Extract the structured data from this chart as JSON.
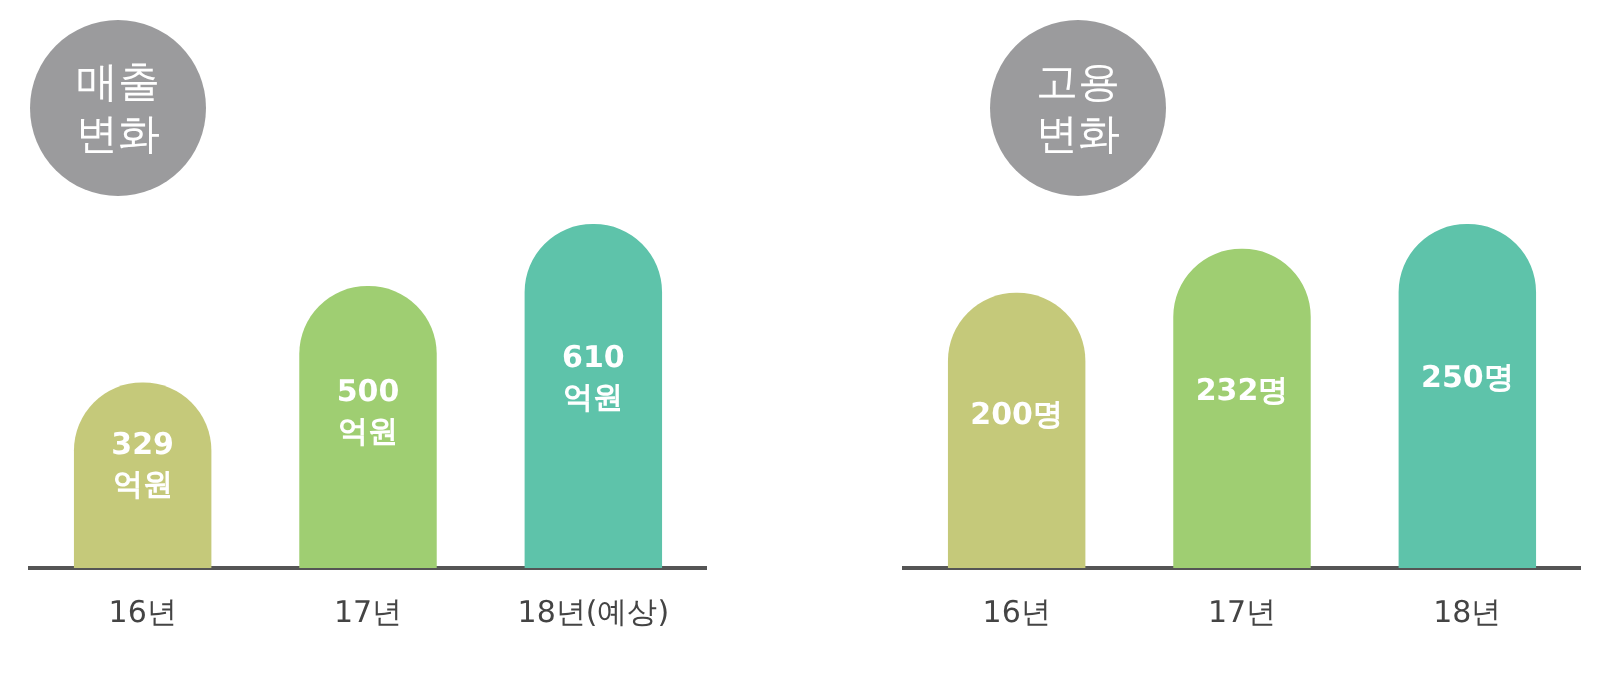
{
  "chart_data": [
    {
      "type": "bar",
      "title": "매출 변화",
      "categories": [
        "16년",
        "17년",
        "18년(예상)"
      ],
      "values": [
        329,
        500,
        610
      ],
      "colors": [
        "#c5c97a",
        "#9fce72",
        "#5ec3aa"
      ],
      "value_labels": [
        "329\n억원",
        "500\n억원",
        "610\n억원"
      ]
    },
    {
      "type": "bar",
      "title": "고용 변화",
      "categories": [
        "16년",
        "17년",
        "18년"
      ],
      "values": [
        200,
        232,
        250
      ],
      "colors": [
        "#c5c97a",
        "#9fce72",
        "#5ec3aa"
      ],
      "value_labels": [
        "200명",
        "232명",
        "250명"
      ]
    }
  ]
}
